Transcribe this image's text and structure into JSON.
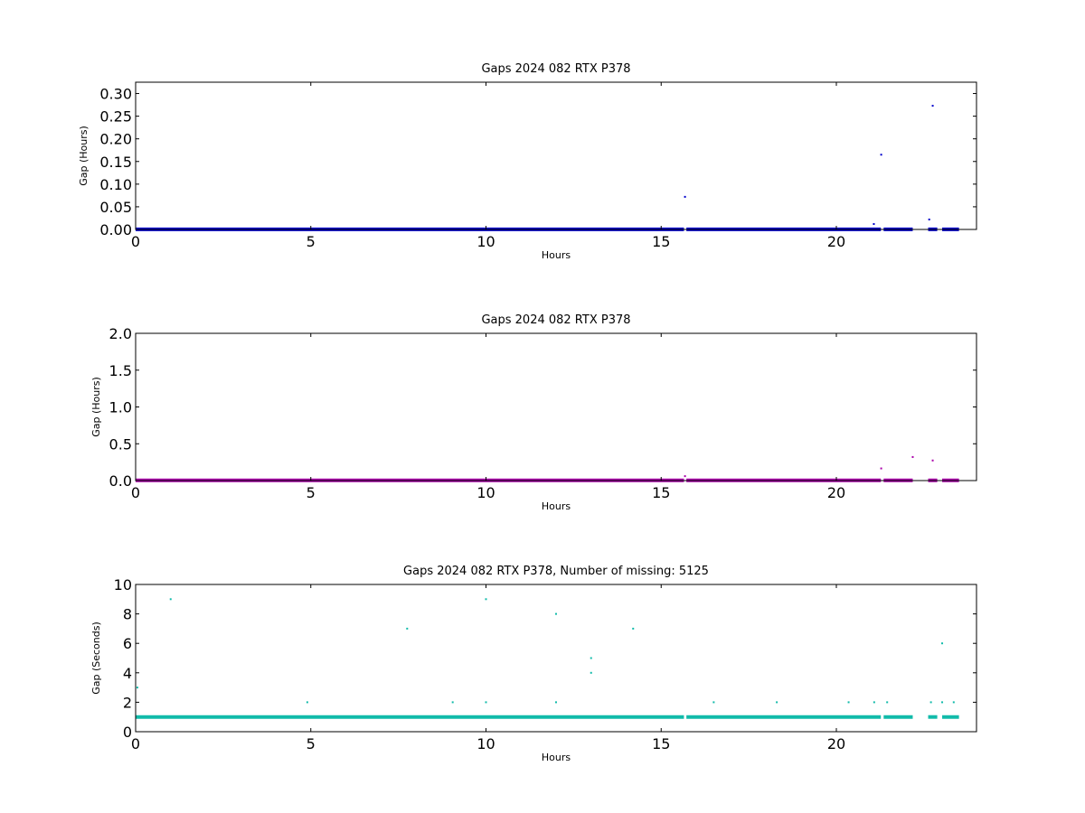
{
  "chart_data": [
    {
      "type": "scatter",
      "title": "Gaps 2024 082 RTX  P378",
      "xlabel": "Hours",
      "ylabel": "Gap (Hours)",
      "xlim": [
        0,
        24
      ],
      "ylim": [
        0,
        0.325
      ],
      "xticks": [
        "0",
        "5",
        "10",
        "15",
        "20"
      ],
      "yticks": [
        "0.00",
        "0.05",
        "0.10",
        "0.15",
        "0.20",
        "0.25",
        "0.30"
      ],
      "grid": false,
      "color": "#0000cc",
      "baseline": {
        "y": 0.0003,
        "segments": [
          [
            0,
            15.65
          ],
          [
            15.72,
            21.27
          ],
          [
            21.35,
            22.18
          ],
          [
            22.62,
            22.88
          ],
          [
            23.02,
            23.5
          ]
        ]
      },
      "points": [
        {
          "x": 15.68,
          "y": 0.072
        },
        {
          "x": 21.07,
          "y": 0.012
        },
        {
          "x": 21.28,
          "y": 0.165
        },
        {
          "x": 22.65,
          "y": 0.022
        },
        {
          "x": 22.75,
          "y": 0.273
        }
      ]
    },
    {
      "type": "scatter",
      "title": "Gaps 2024 082 RTX  P378",
      "xlabel": "Hours",
      "ylabel": "Gap (Hours)",
      "xlim": [
        0,
        24
      ],
      "ylim": [
        0,
        2.0
      ],
      "xticks": [
        "0",
        "5",
        "10",
        "15",
        "20"
      ],
      "yticks": [
        "0.0",
        "0.5",
        "1.0",
        "1.5",
        "2.0"
      ],
      "grid": false,
      "color": "#aa00aa",
      "baseline": {
        "y": 0.003,
        "segments": [
          [
            0,
            15.65
          ],
          [
            15.72,
            21.27
          ],
          [
            21.35,
            22.18
          ],
          [
            22.62,
            22.88
          ],
          [
            23.02,
            23.5
          ]
        ]
      },
      "points": [
        {
          "x": 15.68,
          "y": 0.06
        },
        {
          "x": 21.28,
          "y": 0.165
        },
        {
          "x": 22.18,
          "y": 0.32
        },
        {
          "x": 22.75,
          "y": 0.273
        }
      ]
    },
    {
      "type": "scatter",
      "title": "Gaps 2024 082 RTX  P378, Number of missing: 5125",
      "xlabel": "Hours",
      "ylabel": "Gap (Seconds)",
      "xlim": [
        0,
        24
      ],
      "ylim": [
        0,
        10
      ],
      "xticks": [
        "0",
        "5",
        "10",
        "15",
        "20"
      ],
      "yticks": [
        "0",
        "2",
        "4",
        "6",
        "8",
        "10"
      ],
      "grid": false,
      "color": "#11bbaa",
      "baseline": {
        "y": 1,
        "segments": [
          [
            0,
            15.65
          ],
          [
            15.72,
            21.27
          ],
          [
            21.35,
            22.18
          ],
          [
            22.62,
            22.88
          ],
          [
            23.02,
            23.5
          ]
        ]
      },
      "points": [
        {
          "x": 0.05,
          "y": 3
        },
        {
          "x": 1.0,
          "y": 9
        },
        {
          "x": 4.9,
          "y": 2
        },
        {
          "x": 7.75,
          "y": 7
        },
        {
          "x": 9.05,
          "y": 2
        },
        {
          "x": 10.0,
          "y": 9
        },
        {
          "x": 10.0,
          "y": 2
        },
        {
          "x": 12.0,
          "y": 8
        },
        {
          "x": 12.0,
          "y": 2
        },
        {
          "x": 13.0,
          "y": 5
        },
        {
          "x": 13.0,
          "y": 4
        },
        {
          "x": 14.2,
          "y": 7
        },
        {
          "x": 16.5,
          "y": 2
        },
        {
          "x": 18.3,
          "y": 2
        },
        {
          "x": 20.35,
          "y": 2
        },
        {
          "x": 21.08,
          "y": 2
        },
        {
          "x": 21.45,
          "y": 2
        },
        {
          "x": 22.7,
          "y": 2
        },
        {
          "x": 23.02,
          "y": 6
        },
        {
          "x": 23.02,
          "y": 2
        },
        {
          "x": 23.35,
          "y": 2
        }
      ]
    }
  ]
}
